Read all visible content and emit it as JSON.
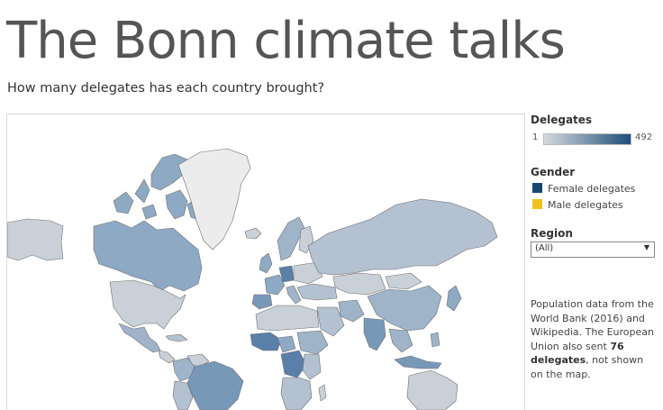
{
  "header": {
    "title": "The Bonn climate talks",
    "subtitle": "How many delegates has each country brought?"
  },
  "legend": {
    "delegates_title": "Delegates",
    "min_label": "1",
    "max_label": "492",
    "gradient": {
      "start_color": "#d5d9dd",
      "end_color": "#1f4e79"
    },
    "gender_title": "Gender",
    "gender_items": [
      {
        "label": "Female delegates",
        "color": "#164a72"
      },
      {
        "label": "Male delegates",
        "color": "#f0c21e"
      }
    ],
    "region_title": "Region",
    "region_value": "(All)"
  },
  "note": {
    "text_before": "Population data from the World Bank (2016) and Wikipedia. The European Union also sent ",
    "bold_text": "76 delegates",
    "text_after": ", not shown on the map."
  },
  "map": {
    "fill_colors": {
      "no_data": "#ececec",
      "low": "#c9d0d8",
      "mid_low": "#b3c1d0",
      "mid": "#9fb4c9",
      "mid_high": "#8ea9c3",
      "high": "#7898b8",
      "very_high": "#5a7fa8",
      "border": "#6f6f6f"
    }
  }
}
